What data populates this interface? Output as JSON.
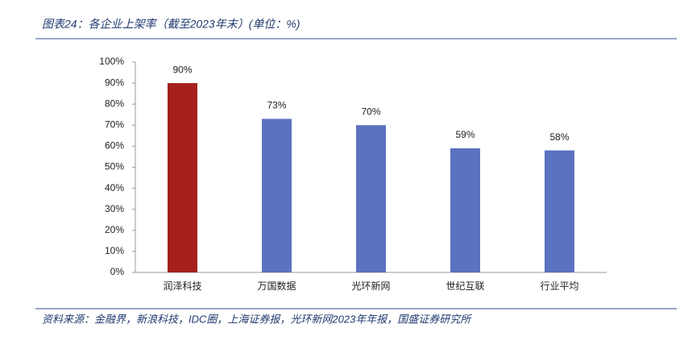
{
  "chart_data": {
    "type": "bar",
    "title": "图表24：各企业上架率（截至2023年末）(单位：%)",
    "source": "资料来源：金融界，新浪科技，IDC圈，上海证券报，光环新网2023年年报，国盛证券研究所",
    "categories": [
      "润泽科技",
      "万国数据",
      "光环新网",
      "世纪互联",
      "行业平均"
    ],
    "values": [
      90,
      73,
      70,
      59,
      58
    ],
    "value_labels": [
      "90%",
      "73%",
      "70%",
      "59%",
      "58%"
    ],
    "colors": [
      "#a5201c",
      "#5b72c0",
      "#5b72c0",
      "#5b72c0",
      "#5b72c0"
    ],
    "ylim": [
      0,
      100
    ],
    "yticks": [
      {
        "value": 0,
        "label": "0%"
      },
      {
        "value": 10,
        "label": "10%"
      },
      {
        "value": 20,
        "label": "20%"
      },
      {
        "value": 30,
        "label": "30%"
      },
      {
        "value": 40,
        "label": "40%"
      },
      {
        "value": 50,
        "label": "50%"
      },
      {
        "value": 60,
        "label": "60%"
      },
      {
        "value": 70,
        "label": "70%"
      },
      {
        "value": 80,
        "label": "80%"
      },
      {
        "value": 90,
        "label": "90%"
      },
      {
        "value": 100,
        "label": "100%"
      }
    ],
    "grid": false
  }
}
